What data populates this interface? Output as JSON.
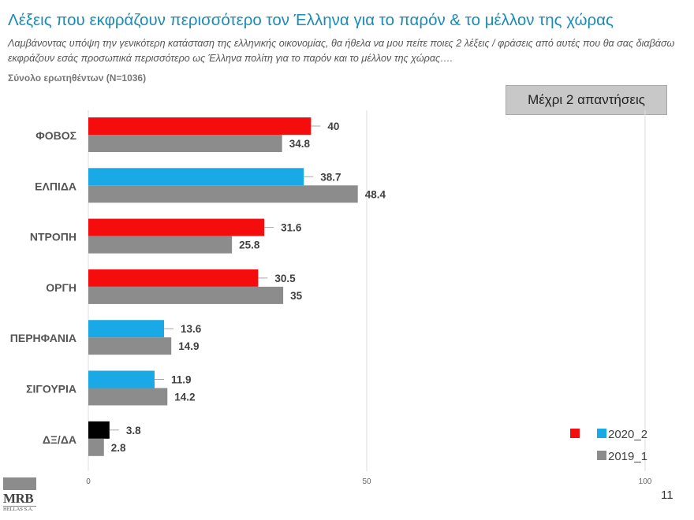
{
  "title": "Λέξεις που εκφράζουν περισσότερο τον Έλληνα για το παρόν & το μέλλον της χώρας",
  "question": "Λαμβάνοντας υπόψη την γενικότερη κατάσταση της ελληνικής οικονομίας, θα ήθελα να μου πείτε ποιες 2  λέξεις / φράσεις από αυτές που θα σας διαβάσω εκφράζουν εσάς προσωπικά περισσότερο ως Έλληνα πολίτη για το παρόν και το μέλλον της χώρας….",
  "base": "Σύνολο ερωτηθέντων (N=1036)",
  "badge": "Μέχρι 2 απαντήσεις",
  "page_number": "11",
  "logo": {
    "name": "MRB",
    "subtitle": "HELLAS S.A."
  },
  "chart_data": {
    "type": "bar",
    "orientation": "horizontal",
    "categories": [
      "ΦΟΒΟΣ",
      "ΕΛΠΙΔΑ",
      "ΝΤΡΟΠΗ",
      "ΟΡΓΗ",
      "ΠΕΡΗΦΑΝΙΑ",
      "ΣΙΓΟΥΡΙΑ",
      "ΔΞ/ΔΑ"
    ],
    "series": [
      {
        "name": "2020_2",
        "values": [
          40,
          38.7,
          31.6,
          30.5,
          13.6,
          11.9,
          3.8
        ],
        "labels": [
          "40",
          "38.7",
          "31.6",
          "30.5",
          "13.6",
          "11.9",
          "3.8"
        ],
        "colors": [
          "#f50d0d",
          "#19a9e6",
          "#f50d0d",
          "#f50d0d",
          "#19a9e6",
          "#19a9e6",
          "#000000"
        ]
      },
      {
        "name": "2019_1",
        "values": [
          34.8,
          48.4,
          25.8,
          35,
          14.9,
          14.2,
          2.8
        ],
        "labels": [
          "34.8",
          "48.4",
          "25.8",
          "35",
          "14.9",
          "14.2",
          "2.8"
        ],
        "colors": [
          "#8c8c8c",
          "#8c8c8c",
          "#8c8c8c",
          "#8c8c8c",
          "#8c8c8c",
          "#8c8c8c",
          "#8c8c8c"
        ]
      }
    ],
    "xlim": [
      0,
      100
    ],
    "x_ticks": [
      "0",
      "50",
      "100"
    ],
    "grid": true,
    "legend": {
      "placement": "bottom-right",
      "entries": [
        {
          "label": "2020_2",
          "swatches": [
            "#f50d0d",
            "#19a9e6"
          ]
        },
        {
          "label": "2019_1",
          "swatches": [
            "#8c8c8c"
          ]
        }
      ]
    }
  }
}
